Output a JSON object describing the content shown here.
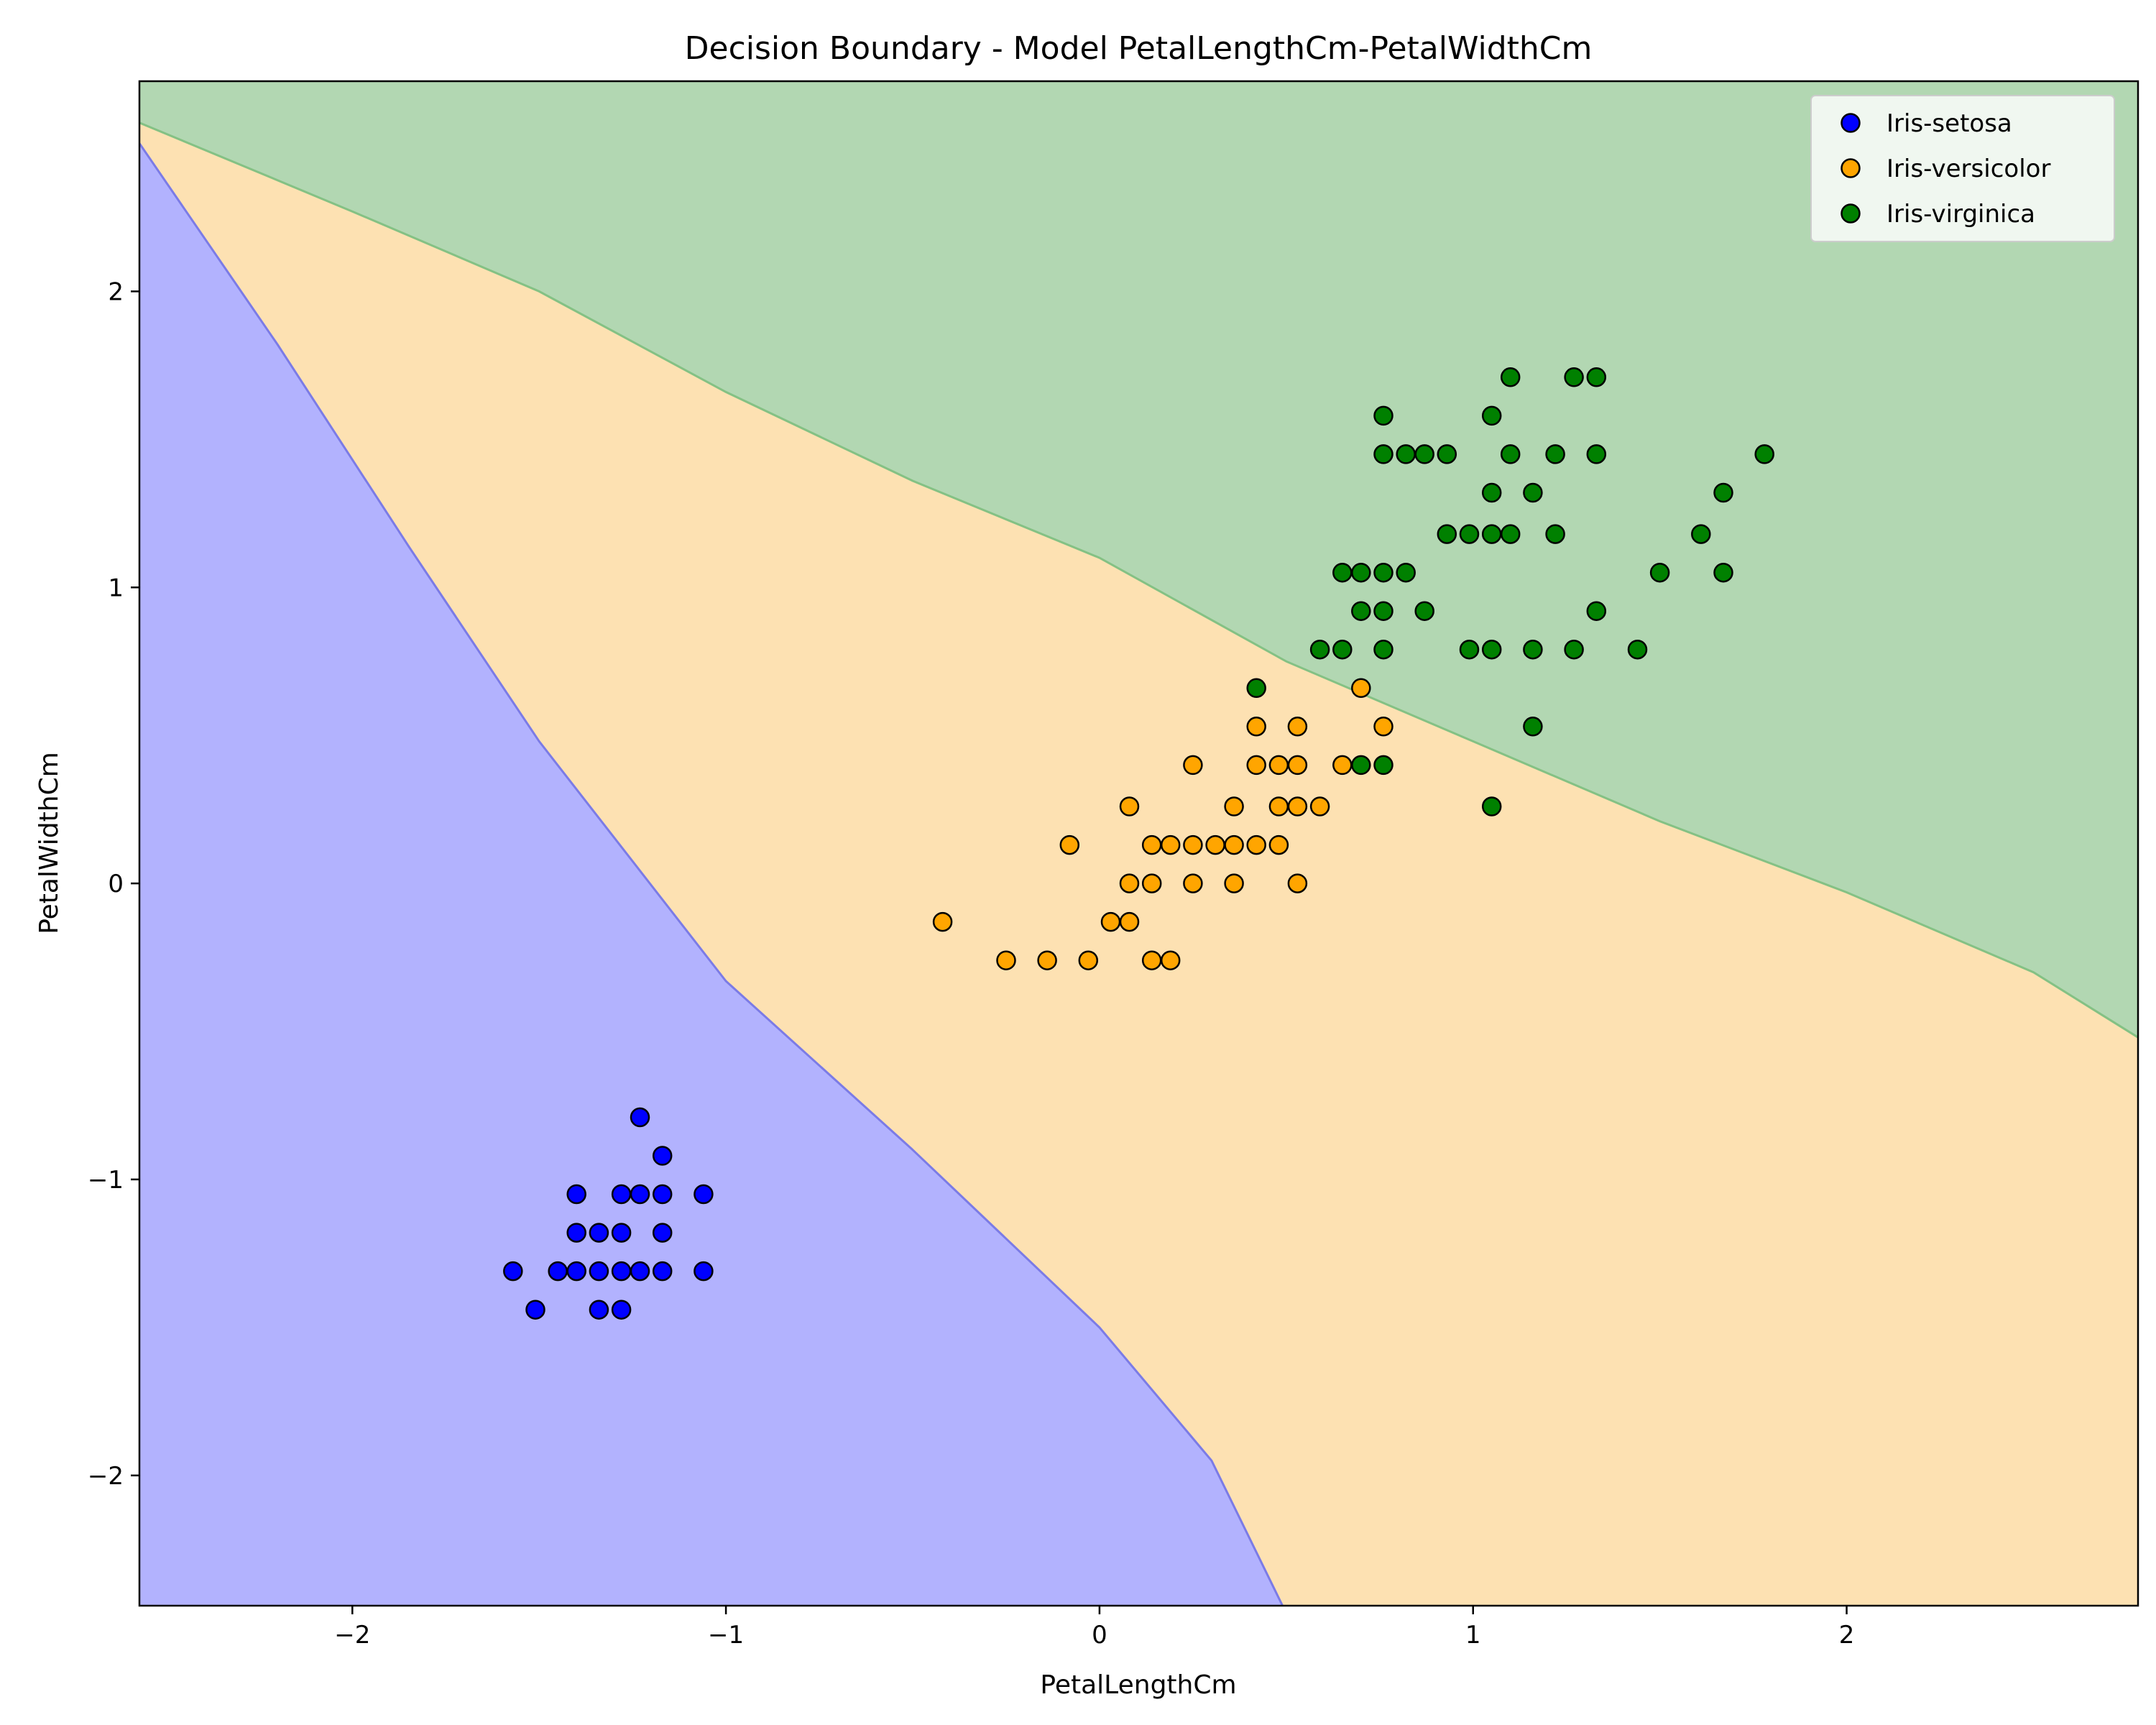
{
  "chart_data": {
    "type": "scatter",
    "title": "Decision Boundary - Model PetalLengthCm-PetalWidthCm",
    "xlabel": "PetalLengthCm",
    "ylabel": "PetalWidthCm",
    "xlim": [
      -2.57,
      2.78
    ],
    "ylim": [
      -2.44,
      2.71
    ],
    "xticks": [
      -2,
      -1,
      0,
      1,
      2
    ],
    "yticks": [
      -2,
      -1,
      0,
      1,
      2
    ],
    "xtick_labels": [
      "−2",
      "−1",
      "0",
      "1",
      "2"
    ],
    "ytick_labels": [
      "−2",
      "−1",
      "0",
      "1",
      "2"
    ],
    "grid": false,
    "legend_position": "top-right",
    "decision_regions": [
      {
        "class": "Iris-setosa",
        "color": "#b2b2fe"
      },
      {
        "class": "Iris-versicolor",
        "color": "#fde1b2"
      },
      {
        "class": "Iris-virginica",
        "color": "#b2d7b2"
      }
    ],
    "boundaries": [
      {
        "between": [
          "Iris-setosa",
          "Iris-versicolor"
        ],
        "line_color": "#7b7be6",
        "points": [
          [
            -2.57,
            2.5
          ],
          [
            -2.2,
            1.82
          ],
          [
            -1.85,
            1.14
          ],
          [
            -1.5,
            0.48
          ],
          [
            -1.0,
            -0.33
          ],
          [
            -0.5,
            -0.9
          ],
          [
            0.0,
            -1.5
          ],
          [
            0.3,
            -1.95
          ],
          [
            0.49,
            -2.44
          ]
        ]
      },
      {
        "between": [
          "Iris-versicolor",
          "Iris-virginica"
        ],
        "line_color": "#84c184",
        "points": [
          [
            -2.57,
            2.57
          ],
          [
            -2.0,
            2.27
          ],
          [
            -1.5,
            2.0
          ],
          [
            -1.0,
            1.66
          ],
          [
            -0.5,
            1.36
          ],
          [
            0.0,
            1.1
          ],
          [
            0.5,
            0.75
          ],
          [
            1.0,
            0.48
          ],
          [
            1.5,
            0.21
          ],
          [
            2.0,
            -0.03
          ],
          [
            2.5,
            -0.3
          ],
          [
            2.78,
            -0.52
          ]
        ]
      }
    ],
    "series": [
      {
        "name": "Iris-setosa",
        "color": "#0000ff",
        "points": [
          [
            -1.57,
            -1.31
          ],
          [
            -1.51,
            -1.44
          ],
          [
            -1.45,
            -1.31
          ],
          [
            -1.4,
            -1.31
          ],
          [
            -1.4,
            -1.18
          ],
          [
            -1.4,
            -1.05
          ],
          [
            -1.34,
            -1.31
          ],
          [
            -1.34,
            -1.18
          ],
          [
            -1.34,
            -1.44
          ],
          [
            -1.28,
            -1.31
          ],
          [
            -1.28,
            -1.18
          ],
          [
            -1.28,
            -1.05
          ],
          [
            -1.28,
            -1.44
          ],
          [
            -1.23,
            -1.31
          ],
          [
            -1.23,
            -1.05
          ],
          [
            -1.23,
            -0.79
          ],
          [
            -1.17,
            -1.31
          ],
          [
            -1.17,
            -1.18
          ],
          [
            -1.17,
            -1.05
          ],
          [
            -1.17,
            -0.92
          ],
          [
            -1.06,
            -1.31
          ],
          [
            -1.06,
            -1.05
          ]
        ]
      },
      {
        "name": "Iris-versicolor",
        "color": "#ffa500",
        "points": [
          [
            -0.42,
            -0.13
          ],
          [
            -0.25,
            -0.26
          ],
          [
            -0.14,
            -0.26
          ],
          [
            -0.08,
            0.13
          ],
          [
            -0.03,
            -0.26
          ],
          [
            0.03,
            -0.13
          ],
          [
            0.08,
            -0.13
          ],
          [
            0.08,
            0.0
          ],
          [
            0.08,
            0.26
          ],
          [
            0.14,
            -0.26
          ],
          [
            0.14,
            0.0
          ],
          [
            0.14,
            0.13
          ],
          [
            0.19,
            -0.26
          ],
          [
            0.19,
            0.13
          ],
          [
            0.25,
            0.0
          ],
          [
            0.25,
            0.13
          ],
          [
            0.25,
            0.4
          ],
          [
            0.31,
            0.13
          ],
          [
            0.36,
            0.0
          ],
          [
            0.36,
            0.13
          ],
          [
            0.36,
            0.26
          ],
          [
            0.42,
            0.13
          ],
          [
            0.42,
            0.4
          ],
          [
            0.42,
            0.53
          ],
          [
            0.48,
            0.13
          ],
          [
            0.48,
            0.26
          ],
          [
            0.48,
            0.4
          ],
          [
            0.53,
            0.0
          ],
          [
            0.53,
            0.26
          ],
          [
            0.53,
            0.4
          ],
          [
            0.53,
            0.53
          ],
          [
            0.59,
            0.26
          ],
          [
            0.65,
            0.4
          ],
          [
            0.7,
            0.66
          ],
          [
            0.76,
            0.53
          ]
        ]
      },
      {
        "name": "Iris-virginica",
        "color": "#008000",
        "points": [
          [
            0.42,
            0.66
          ],
          [
            0.59,
            0.79
          ],
          [
            0.65,
            0.79
          ],
          [
            0.65,
            1.05
          ],
          [
            0.7,
            0.4
          ],
          [
            0.7,
            0.92
          ],
          [
            0.7,
            1.05
          ],
          [
            0.76,
            0.4
          ],
          [
            0.76,
            0.79
          ],
          [
            0.76,
            0.92
          ],
          [
            0.76,
            1.05
          ],
          [
            0.76,
            1.45
          ],
          [
            0.76,
            1.58
          ],
          [
            0.82,
            1.05
          ],
          [
            0.82,
            1.45
          ],
          [
            0.87,
            0.92
          ],
          [
            0.87,
            1.45
          ],
          [
            0.93,
            1.18
          ],
          [
            0.93,
            1.45
          ],
          [
            0.99,
            0.79
          ],
          [
            0.99,
            1.18
          ],
          [
            1.05,
            0.26
          ],
          [
            1.05,
            0.79
          ],
          [
            1.05,
            1.18
          ],
          [
            1.05,
            1.32
          ],
          [
            1.05,
            1.58
          ],
          [
            1.1,
            1.18
          ],
          [
            1.1,
            1.45
          ],
          [
            1.1,
            1.71
          ],
          [
            1.16,
            0.53
          ],
          [
            1.16,
            0.79
          ],
          [
            1.16,
            1.32
          ],
          [
            1.22,
            1.18
          ],
          [
            1.22,
            1.45
          ],
          [
            1.27,
            0.79
          ],
          [
            1.27,
            1.71
          ],
          [
            1.33,
            0.92
          ],
          [
            1.33,
            1.45
          ],
          [
            1.33,
            1.71
          ],
          [
            1.44,
            0.79
          ],
          [
            1.5,
            1.05
          ],
          [
            1.61,
            1.18
          ],
          [
            1.67,
            1.05
          ],
          [
            1.67,
            1.32
          ],
          [
            1.78,
            1.45
          ]
        ]
      }
    ]
  }
}
